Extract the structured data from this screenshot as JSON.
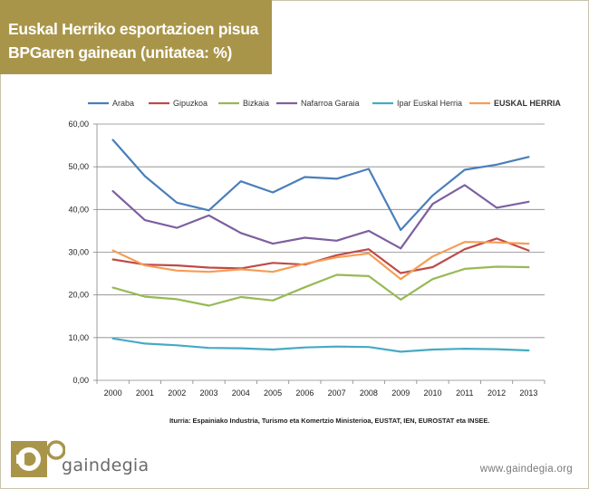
{
  "header": {
    "title_line1": "Euskal Herriko esportazioen pisua",
    "title_line2": "BPGaren gainean (unitatea: %)"
  },
  "chart_data": {
    "type": "line",
    "title": "Euskal Herriko esportazioen pisua BPGaren gainean (unitatea: %)",
    "xlabel": "",
    "ylabel": "",
    "ylim": [
      0,
      60
    ],
    "y_ticks": [
      0,
      10,
      20,
      30,
      40,
      50,
      60
    ],
    "y_tick_labels": [
      "0,00",
      "10,00",
      "20,00",
      "30,00",
      "40,00",
      "50,00",
      "60,00"
    ],
    "grid": true,
    "legend_position": "top",
    "categories": [
      "2000",
      "2001",
      "2002",
      "2003",
      "2004",
      "2005",
      "2006",
      "2007",
      "2008",
      "2009",
      "2010",
      "2011",
      "2012",
      "2013"
    ],
    "series": [
      {
        "name": "Araba",
        "color": "#4a7ebb",
        "bold": false,
        "values": [
          56.3,
          47.8,
          41.6,
          39.8,
          46.6,
          44.0,
          47.6,
          47.2,
          49.5,
          35.2,
          43.3,
          49.3,
          50.5,
          52.3
        ]
      },
      {
        "name": "Gipuzkoa",
        "color": "#be4b48",
        "bold": false,
        "values": [
          28.3,
          27.1,
          26.9,
          26.4,
          26.2,
          27.5,
          27.1,
          29.3,
          30.7,
          25.1,
          26.5,
          30.7,
          33.2,
          30.4
        ]
      },
      {
        "name": "Bizkaia",
        "color": "#98b954",
        "bold": false,
        "values": [
          21.7,
          19.6,
          19.0,
          17.5,
          19.5,
          18.7,
          21.8,
          24.7,
          24.4,
          18.9,
          23.7,
          26.1,
          26.6,
          26.5
        ]
      },
      {
        "name": "Nafarroa Garaia",
        "color": "#7d5fa0",
        "bold": false,
        "values": [
          44.3,
          37.5,
          35.7,
          38.6,
          34.5,
          32.0,
          33.4,
          32.7,
          35.0,
          30.9,
          41.3,
          45.7,
          40.4,
          41.8
        ]
      },
      {
        "name": "Ipar Euskal Herria",
        "color": "#46aac4",
        "bold": false,
        "values": [
          9.8,
          8.6,
          8.2,
          7.6,
          7.5,
          7.2,
          7.7,
          7.9,
          7.8,
          6.7,
          7.2,
          7.4,
          7.3,
          7.0
        ]
      },
      {
        "name": "EUSKAL HERRIA",
        "color": "#f59d56",
        "bold": true,
        "values": [
          30.4,
          26.9,
          25.7,
          25.4,
          26.0,
          25.4,
          27.3,
          28.8,
          29.7,
          23.7,
          29.0,
          32.4,
          32.3,
          32.0
        ]
      }
    ]
  },
  "footer": {
    "source": "Iturria: Espainiako Industria, Turismo eta Komertzio Ministerioa, EUSTAT, IEN, EUROSTAT eta INSEE.",
    "logo_text": "gaindegia",
    "website": "www.gaindegia.org"
  },
  "colors": {
    "title_bg": "#a9954a",
    "logo_gold": "#a9954a",
    "grid": "#868686"
  }
}
